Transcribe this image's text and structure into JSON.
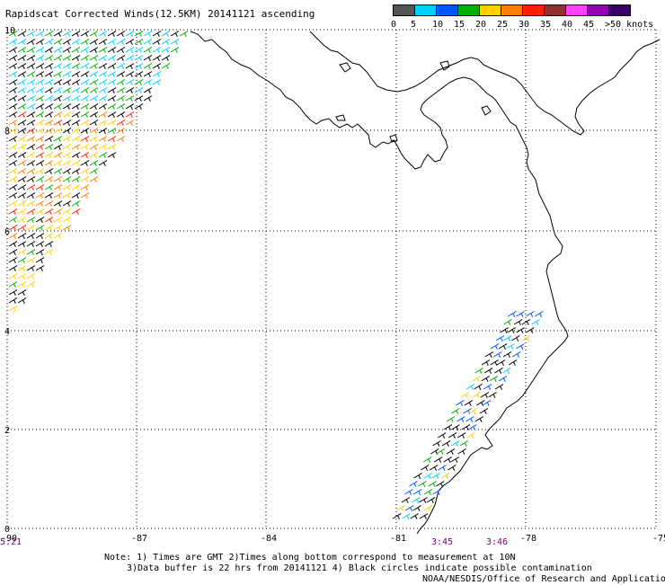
{
  "title": "Rapidscat Corrected Winds(12.5KM) 20141121 ascending",
  "legend": {
    "labels": [
      "0",
      "5",
      "10",
      "15",
      "20",
      "25",
      "30",
      "35",
      "40",
      "45",
      ">50 knots"
    ],
    "colors": [
      "#555555",
      "#00d0ff",
      "#0055ff",
      "#00b000",
      "#ffd000",
      "#ff8000",
      "#ff2000",
      "#903030",
      "#ff40ff",
      "#9000b0",
      "#3a006a"
    ]
  },
  "axes": {
    "lon_labels": [
      "-90",
      "-87",
      "-84",
      "-81",
      "-78",
      "-75"
    ],
    "lat_labels": [
      "10",
      "8",
      "6",
      "4",
      "2",
      "0"
    ]
  },
  "pass_times": [
    {
      "label": "5:21",
      "color": "#800080"
    },
    {
      "label": "3:45",
      "color": "#800080"
    },
    {
      "label": "3:46",
      "color": "#800080"
    }
  ],
  "notes": {
    "line1": "Note: 1) Times are GMT 2)Times along bottom correspond to measurement at 10N",
    "line2": "3)Data buffer is 22 hrs from 20141121 4) Black circles indicate possible contamination",
    "line3": "NOAA/NESDIS/Office of Research and Applications"
  }
}
